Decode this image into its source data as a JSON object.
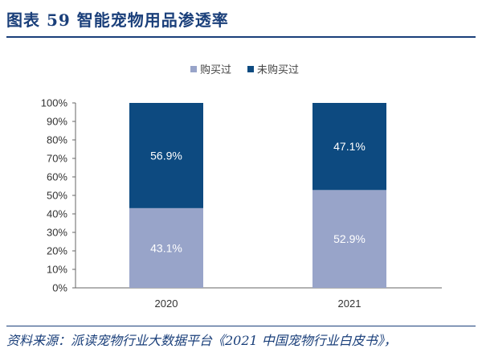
{
  "header": {
    "title": "图表 59  智能宠物用品渗透率"
  },
  "footer": {
    "source": "资料来源：派读宠物行业大数据平台《2021 中国宠物行业白皮书》，"
  },
  "colors": {
    "bought": "#98a4c9",
    "not_bought": "#0d4a80",
    "accent": "#1a3f7a"
  },
  "chart_data": {
    "type": "bar",
    "stacked": true,
    "categories": [
      "2020",
      "2021"
    ],
    "series": [
      {
        "name": "购买过",
        "values": [
          43.1,
          52.9
        ],
        "labels": [
          "43.1%",
          "52.9%"
        ]
      },
      {
        "name": "未购买过",
        "values": [
          56.9,
          47.1
        ],
        "labels": [
          "56.9%",
          "47.1%"
        ]
      }
    ],
    "ylim": [
      0,
      100
    ],
    "yticks": [
      "0%",
      "10%",
      "20%",
      "30%",
      "40%",
      "50%",
      "60%",
      "70%",
      "80%",
      "90%",
      "100%"
    ],
    "legend_position": "top-center",
    "grid": false
  }
}
